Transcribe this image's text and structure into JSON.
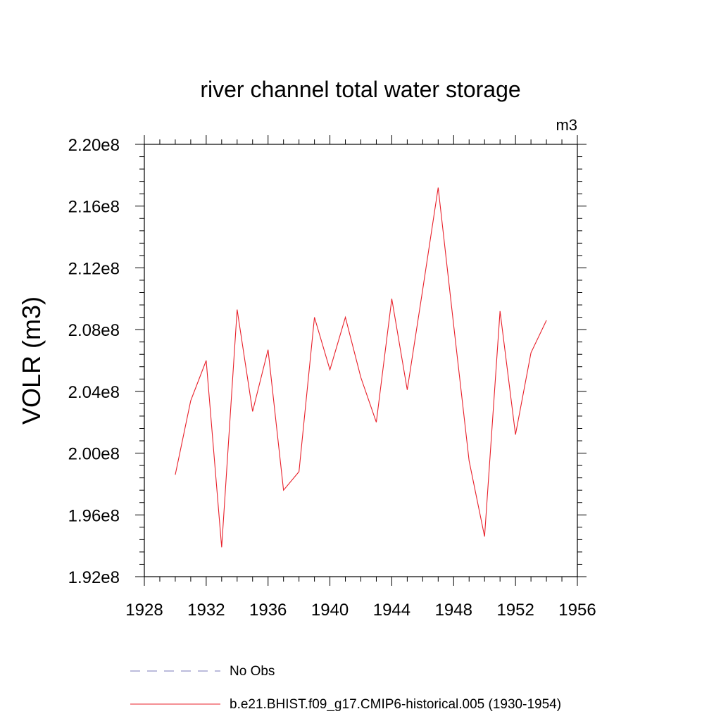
{
  "chart_data": {
    "type": "line",
    "title": "river channel total water storage",
    "units_label": "m3",
    "ylabel": "VOLR  (m3)",
    "xlabel": "",
    "xlim": [
      1928,
      1956
    ],
    "ylim": [
      192000000.0,
      220000000.0
    ],
    "x_ticks": [
      1928,
      1932,
      1936,
      1940,
      1944,
      1948,
      1952,
      1956
    ],
    "x_tick_labels": [
      "1928",
      "1932",
      "1936",
      "1940",
      "1944",
      "1948",
      "1952",
      "1956"
    ],
    "y_ticks": [
      192000000.0,
      196000000.0,
      200000000.0,
      204000000.0,
      208000000.0,
      212000000.0,
      216000000.0,
      220000000.0
    ],
    "y_tick_labels": [
      "1.92e8",
      "1.96e8",
      "2.00e8",
      "2.04e8",
      "2.08e8",
      "2.12e8",
      "2.16e8",
      "2.20e8"
    ],
    "grid": false,
    "legend_position": "bottom",
    "legend": [
      {
        "label": "No Obs",
        "color": "#7a7ab8",
        "style": "dashed"
      },
      {
        "label": "b.e21.BHIST.f09_g17.CMIP6-historical.005 (1930-1954)",
        "color": "#e8202a",
        "style": "solid"
      }
    ],
    "series": [
      {
        "name": "b.e21.BHIST.f09_g17.CMIP6-historical.005 (1930-1954)",
        "color": "#e8202a",
        "x": [
          1930,
          1931,
          1932,
          1933,
          1934,
          1935,
          1936,
          1937,
          1938,
          1939,
          1940,
          1941,
          1942,
          1943,
          1944,
          1945,
          1946,
          1947,
          1948,
          1949,
          1950,
          1951,
          1952,
          1953,
          1954
        ],
        "y": [
          198600000.0,
          203400000.0,
          206000000.0,
          193900000.0,
          209300000.0,
          202700000.0,
          206700000.0,
          197600000.0,
          198800000.0,
          208800000.0,
          205400000.0,
          208800000.0,
          204900000.0,
          202000000.0,
          210000000.0,
          204100000.0,
          210600000.0,
          217200000.0,
          208300000.0,
          199500000.0,
          194600000.0,
          209200000.0,
          201200000.0,
          206500000.0,
          208600000.0
        ]
      }
    ]
  }
}
